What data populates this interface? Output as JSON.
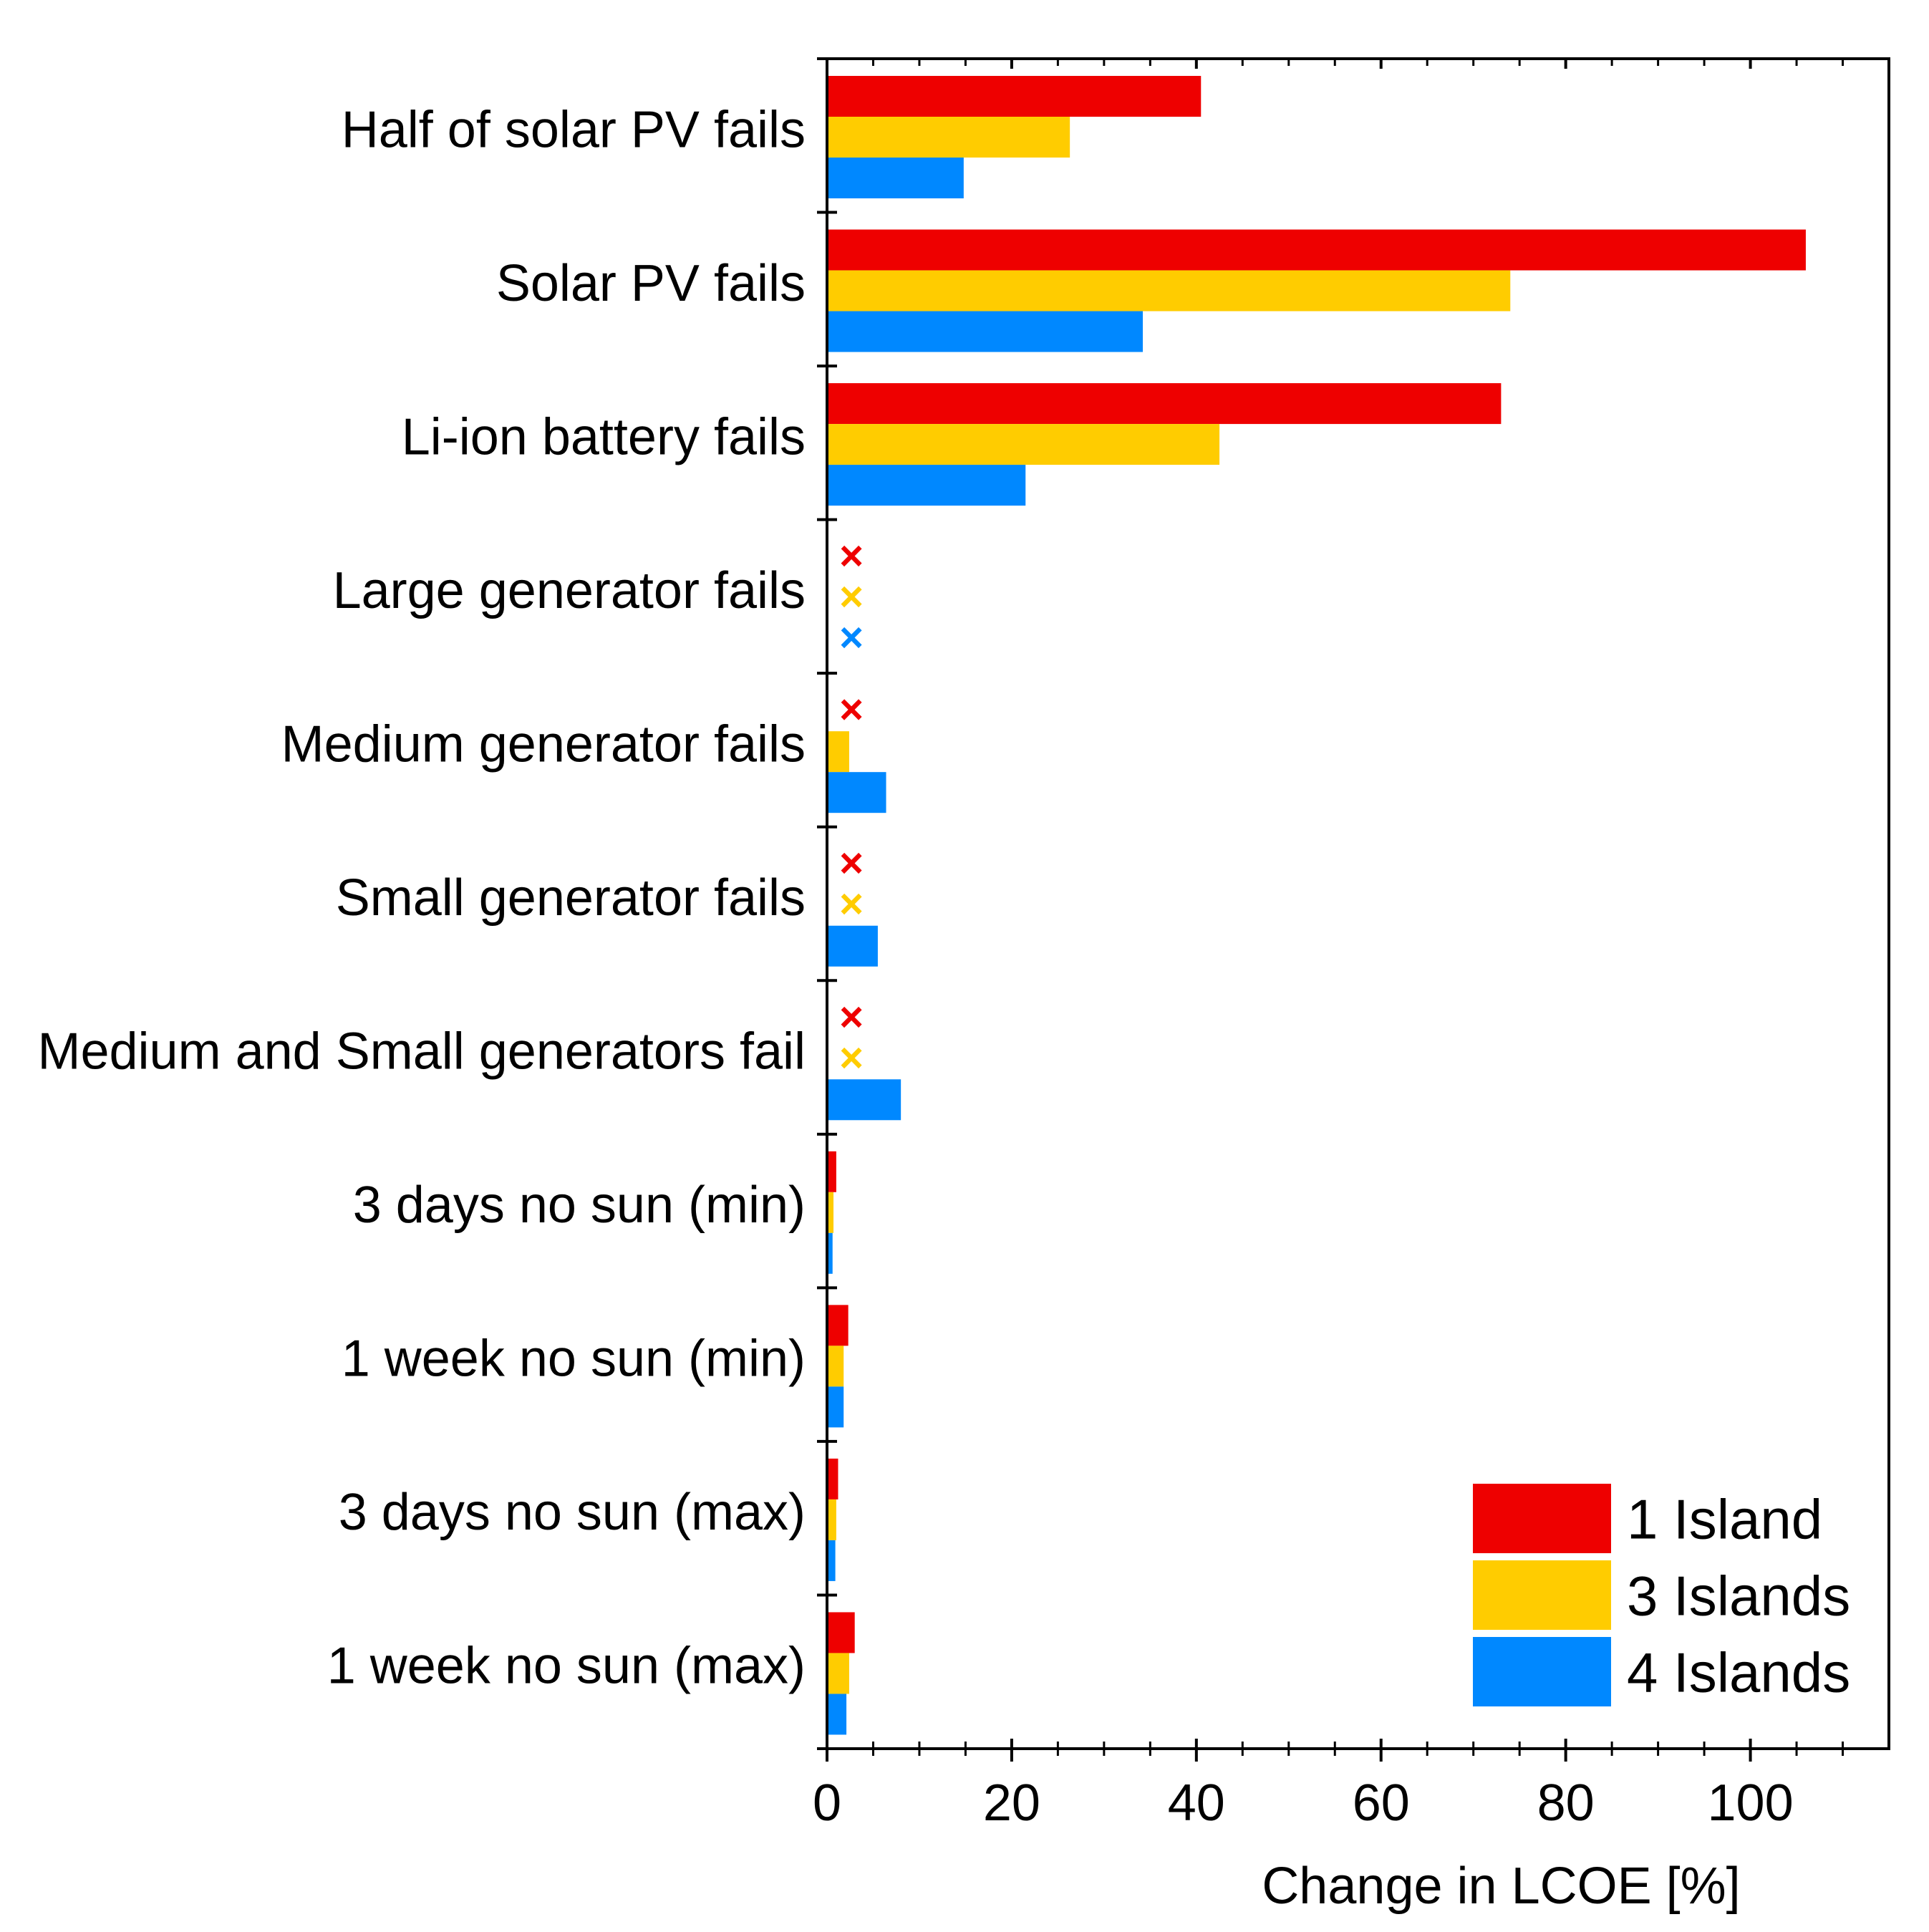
{
  "chart_data": {
    "type": "bar",
    "orientation": "horizontal",
    "xlabel": "Change in LCOE [%]",
    "xlim": [
      0,
      115
    ],
    "xticks": [
      0,
      20,
      40,
      60,
      80,
      100
    ],
    "xtick_labels": [
      "0",
      "20",
      "40",
      "60",
      "80",
      "100"
    ],
    "categories": [
      "Half of solar PV fails",
      "Solar PV fails",
      "Li-ion battery fails",
      "Large generator fails",
      "Medium generator fails",
      "Small generator fails",
      "Medium and Small generators fail",
      "3 days no sun (min)",
      "1 week no sun (min)",
      "3 days no sun (max)",
      "1 week no sun (max)"
    ],
    "series": [
      {
        "name": "1 Island",
        "color": "#ee0000",
        "values": [
          40.5,
          106,
          73,
          null,
          null,
          null,
          null,
          1.0,
          2.3,
          1.2,
          3.0
        ],
        "failed": [
          false,
          false,
          false,
          true,
          true,
          true,
          true,
          false,
          false,
          false,
          false
        ]
      },
      {
        "name": "3 Islands",
        "color": "#ffcc00",
        "values": [
          26.3,
          74,
          42.5,
          null,
          2.4,
          null,
          null,
          0.7,
          1.8,
          1.0,
          2.4
        ],
        "failed": [
          false,
          false,
          false,
          true,
          false,
          true,
          true,
          false,
          false,
          false,
          false
        ]
      },
      {
        "name": "4 Islands",
        "color": "#0088ff",
        "values": [
          14.8,
          34.2,
          21.5,
          null,
          6.4,
          5.5,
          8.0,
          0.6,
          1.8,
          0.9,
          2.1
        ],
        "failed": [
          false,
          false,
          false,
          true,
          false,
          false,
          false,
          false,
          false,
          false,
          false
        ]
      }
    ],
    "failure_marker": "×",
    "legend": {
      "position": "bottom-right",
      "entries": [
        "1 Island",
        "3 Islands",
        "4 Islands"
      ]
    }
  }
}
